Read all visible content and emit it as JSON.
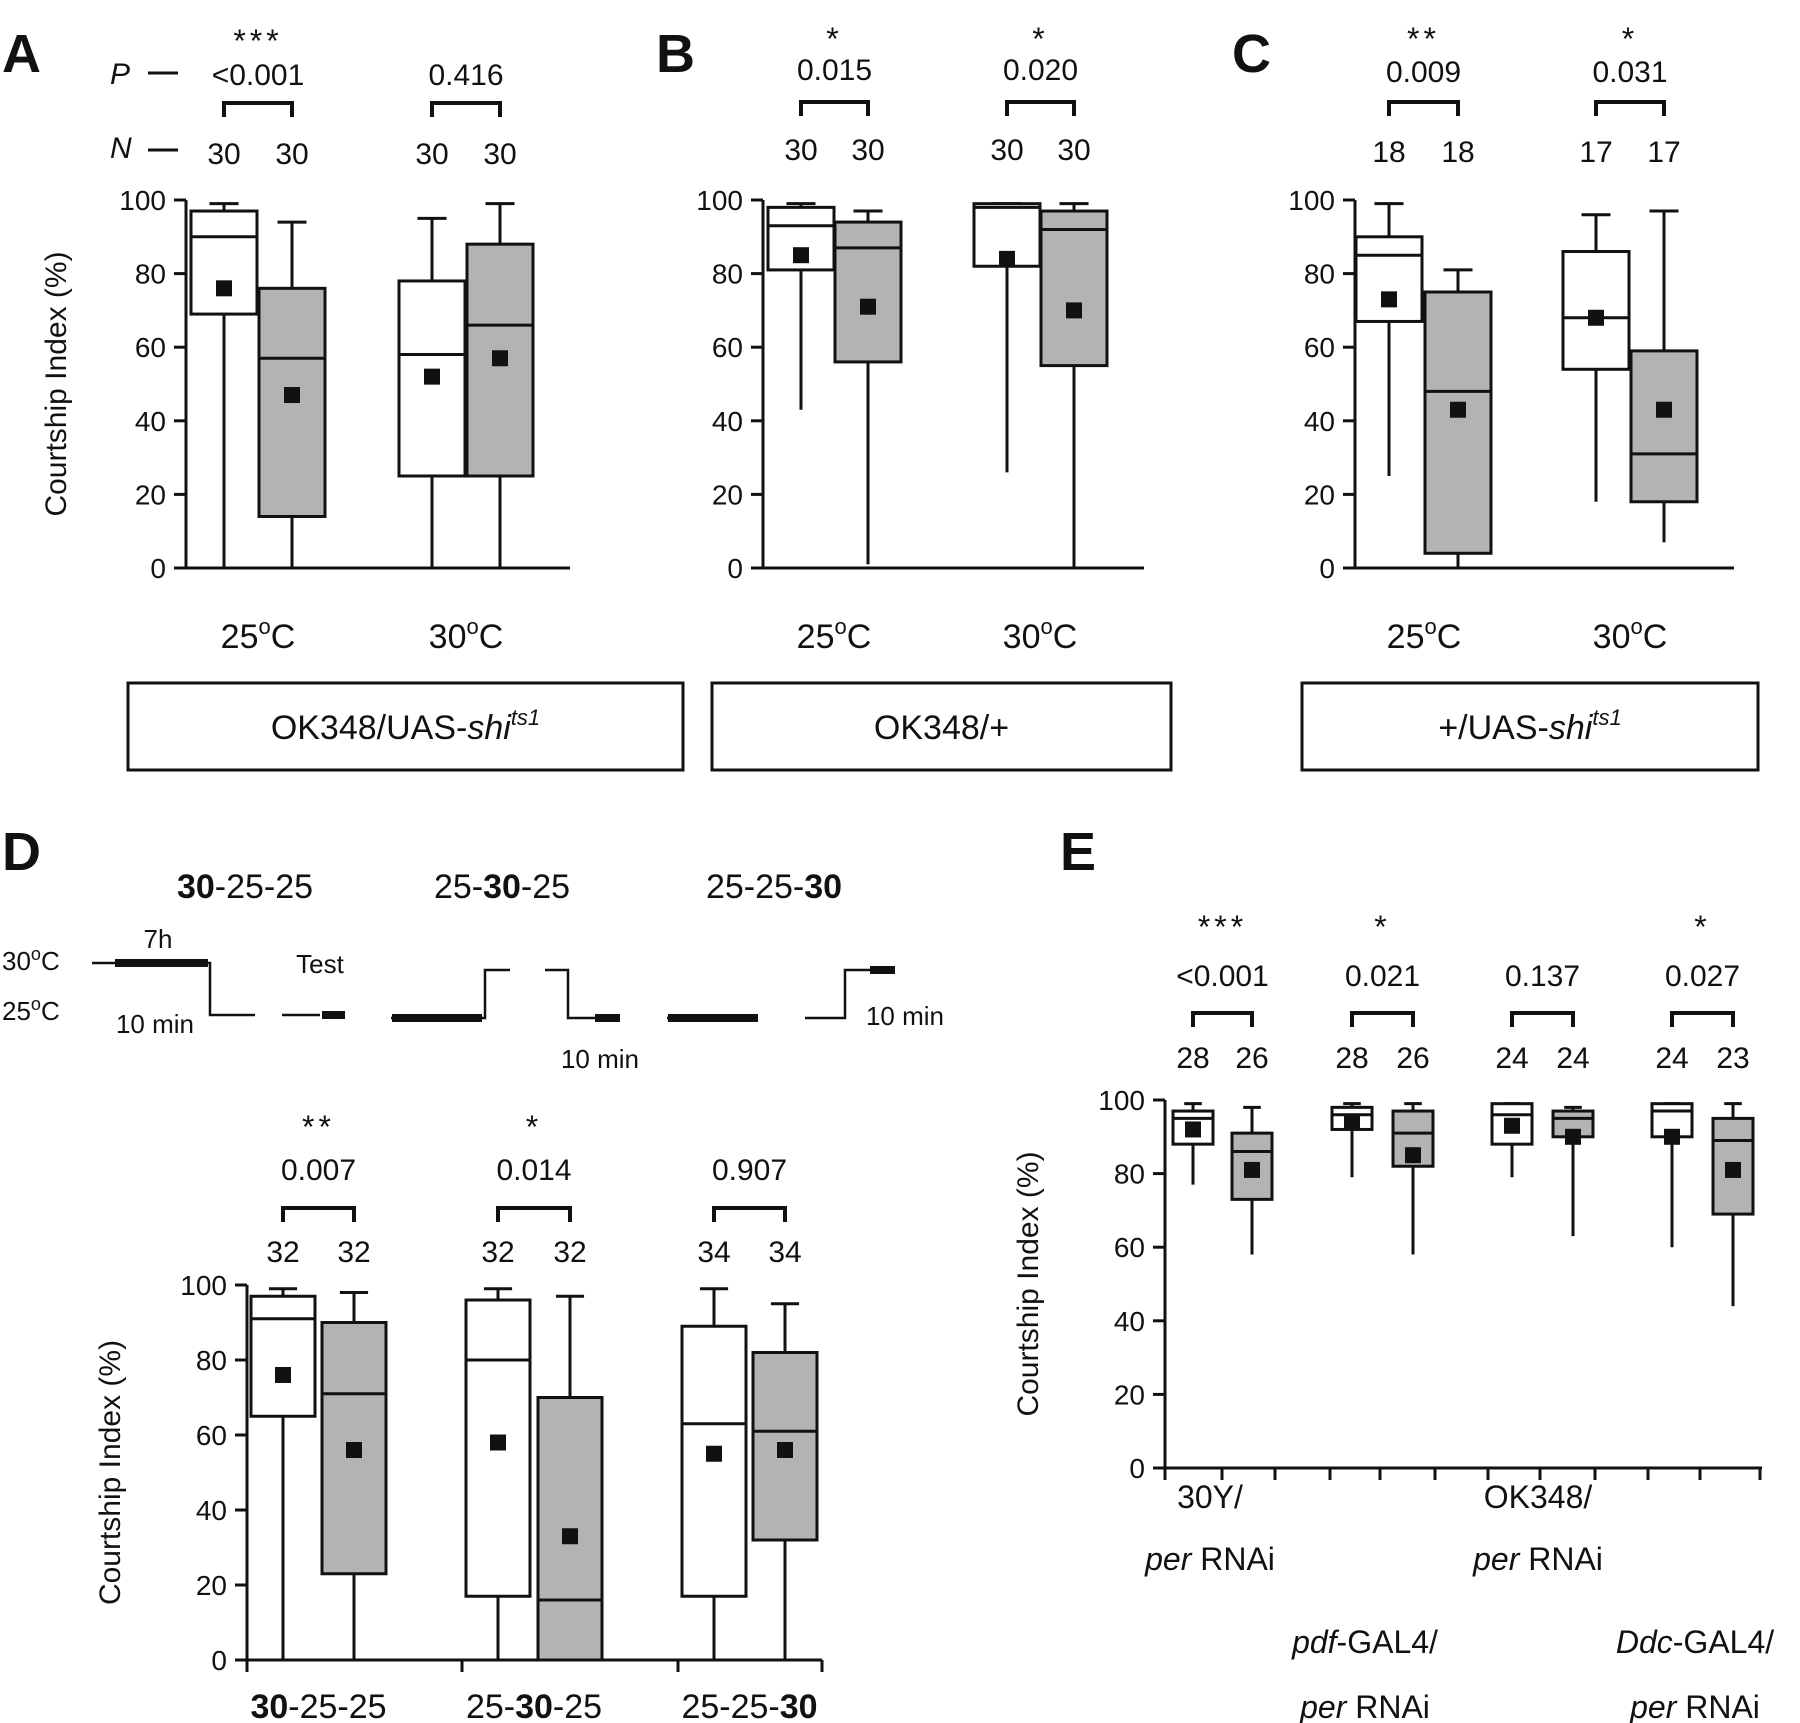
{
  "figure": {
    "row_labels": {
      "p": "P",
      "n": "N"
    },
    "y_axis_label": "Courtship Index (%)",
    "y_ticks": [
      "0",
      "20",
      "40",
      "60",
      "80",
      "100"
    ]
  },
  "top_panels": [
    {
      "letter": "A",
      "genotype_html": "OK348/UAS-<tspan font-style=\"italic\">shi</tspan><tspan font-style=\"italic\" font-size=\"22\" dy=\"-14\">ts1</tspan>",
      "genotype_text": "OK348/UAS-shits1",
      "show_pn_labels": true,
      "groups": [
        {
          "temp": "25",
          "stars": "***",
          "p": "<0.001",
          "n": [
            "30",
            "30"
          ]
        },
        {
          "temp": "30",
          "stars": "",
          "p": "0.416",
          "n": [
            "30",
            "30"
          ]
        }
      ]
    },
    {
      "letter": "B",
      "genotype_html": "OK348/+",
      "genotype_text": "OK348/+",
      "show_pn_labels": false,
      "groups": [
        {
          "temp": "25",
          "stars": "*",
          "p": "0.015",
          "n": [
            "30",
            "30"
          ]
        },
        {
          "temp": "30",
          "stars": "*",
          "p": "0.020",
          "n": [
            "30",
            "30"
          ]
        }
      ]
    },
    {
      "letter": "C",
      "genotype_html": "+/UAS-<tspan font-style=\"italic\">shi</tspan><tspan font-style=\"italic\" font-size=\"22\" dy=\"-14\">ts1</tspan>",
      "genotype_text": "+/UAS-shits1",
      "show_pn_labels": false,
      "groups": [
        {
          "temp": "25",
          "stars": "**",
          "p": "0.009",
          "n": [
            "18",
            "18"
          ]
        },
        {
          "temp": "30",
          "stars": "*",
          "p": "0.031",
          "n": [
            "17",
            "17"
          ]
        }
      ]
    }
  ],
  "panel_d": {
    "letter": "D",
    "schedules": [
      "30-25-25",
      "25-30-25",
      "25-25-30"
    ],
    "schedule_diagram": {
      "hot_label": "30°C",
      "cold_label": "25°C",
      "duration": "7h",
      "test": "Test",
      "ten_min": "10 min"
    },
    "groups": [
      {
        "stars": "**",
        "p": "0.007",
        "n": [
          "32",
          "32"
        ]
      },
      {
        "stars": "*",
        "p": "0.014",
        "n": [
          "32",
          "32"
        ]
      },
      {
        "stars": "",
        "p": "0.907",
        "n": [
          "34",
          "34"
        ]
      }
    ]
  },
  "panel_e": {
    "letter": "E",
    "categories": [
      {
        "line1": "30Y/",
        "line2_italic": "per",
        "line2_rest": " RNAi"
      },
      {
        "line1_italic": "pdf",
        "line1_rest": "-GAL4/",
        "line2_italic": "per",
        "line2_rest": " RNAi"
      },
      {
        "line1": "OK348/",
        "line2_italic": "per",
        "line2_rest": " RNAi"
      },
      {
        "line1_italic": "Ddc",
        "line1_rest": "-GAL4/",
        "line2_italic": "per",
        "line2_rest": " RNAi"
      }
    ],
    "groups": [
      {
        "stars": "***",
        "p": "<0.001",
        "n": [
          "28",
          "26"
        ]
      },
      {
        "stars": "*",
        "p": "0.021",
        "n": [
          "28",
          "26"
        ]
      },
      {
        "stars": "",
        "p": "0.137",
        "n": [
          "24",
          "24"
        ]
      },
      {
        "stars": "*",
        "p": "0.027",
        "n": [
          "24",
          "23"
        ]
      }
    ]
  },
  "chart_data": [
    {
      "panel": "A",
      "type": "box",
      "ylabel": "Courtship Index (%)",
      "ylim": [
        0,
        100
      ],
      "categories": [
        "25°C",
        "30°C"
      ],
      "group_label": "OK348/UAS-shits1",
      "fills": {
        "first": "#ffffff",
        "second": "#b3b3b3"
      },
      "boxes": [
        {
          "min": 0,
          "q1": 69,
          "median": 90,
          "q3": 97,
          "max": 99,
          "mean": 76,
          "fill": "white"
        },
        {
          "min": 0,
          "q1": 14,
          "median": 57,
          "q3": 76,
          "max": 94,
          "mean": 47,
          "fill": "gray"
        },
        {
          "min": 0,
          "q1": 25,
          "median": 58,
          "q3": 78,
          "max": 95,
          "mean": 52,
          "fill": "white"
        },
        {
          "min": 0,
          "q1": 25,
          "median": 66,
          "q3": 88,
          "max": 99,
          "mean": 57,
          "fill": "gray"
        }
      ]
    },
    {
      "panel": "B",
      "type": "box",
      "ylabel": "",
      "ylim": [
        0,
        100
      ],
      "categories": [
        "25°C",
        "30°C"
      ],
      "group_label": "OK348/+",
      "boxes": [
        {
          "min": 43,
          "q1": 81,
          "median": 93,
          "q3": 98,
          "max": 99,
          "mean": 85,
          "fill": "white"
        },
        {
          "min": 1,
          "q1": 56,
          "median": 87,
          "q3": 94,
          "max": 97,
          "mean": 71,
          "fill": "gray"
        },
        {
          "min": 26,
          "q1": 82,
          "median": 98,
          "q3": 99,
          "max": 99,
          "mean": 84,
          "fill": "white"
        },
        {
          "min": 0,
          "q1": 55,
          "median": 92,
          "q3": 97,
          "max": 99,
          "mean": 70,
          "fill": "gray"
        }
      ]
    },
    {
      "panel": "C",
      "type": "box",
      "ylabel": "",
      "ylim": [
        0,
        100
      ],
      "categories": [
        "25°C",
        "30°C"
      ],
      "group_label": "+/UAS-shits1",
      "boxes": [
        {
          "min": 25,
          "q1": 67,
          "median": 85,
          "q3": 90,
          "max": 99,
          "mean": 73,
          "fill": "white"
        },
        {
          "min": 0,
          "q1": 4,
          "median": 48,
          "q3": 75,
          "max": 81,
          "mean": 43,
          "fill": "gray"
        },
        {
          "min": 18,
          "q1": 54,
          "median": 68,
          "q3": 86,
          "max": 96,
          "mean": 68,
          "fill": "white"
        },
        {
          "min": 7,
          "q1": 18,
          "median": 31,
          "q3": 59,
          "max": 97,
          "mean": 43,
          "fill": "gray"
        }
      ]
    },
    {
      "panel": "D",
      "type": "box",
      "ylabel": "Courtship Index (%)",
      "ylim": [
        0,
        100
      ],
      "categories": [
        "30-25-25",
        "25-30-25",
        "25-25-30"
      ],
      "boxes": [
        {
          "min": 0,
          "q1": 65,
          "median": 91,
          "q3": 97,
          "max": 99,
          "mean": 76,
          "fill": "white"
        },
        {
          "min": 0,
          "q1": 23,
          "median": 71,
          "q3": 90,
          "max": 98,
          "mean": 56,
          "fill": "gray"
        },
        {
          "min": 0,
          "q1": 17,
          "median": 80,
          "q3": 96,
          "max": 99,
          "mean": 58,
          "fill": "white"
        },
        {
          "min": 0,
          "q1": 0,
          "median": 16,
          "q3": 70,
          "max": 97,
          "mean": 33,
          "fill": "gray"
        },
        {
          "min": 0,
          "q1": 17,
          "median": 63,
          "q3": 89,
          "max": 99,
          "mean": 55,
          "fill": "white"
        },
        {
          "min": 0,
          "q1": 32,
          "median": 61,
          "q3": 82,
          "max": 95,
          "mean": 56,
          "fill": "gray"
        }
      ]
    },
    {
      "panel": "E",
      "type": "box",
      "ylabel": "Courtship Index (%)",
      "ylim": [
        0,
        100
      ],
      "categories": [
        "30Y/per RNAi",
        "pdf-GAL4/per RNAi",
        "OK348/per RNAi",
        "Ddc-GAL4/per RNAi"
      ],
      "boxes": [
        {
          "min": 77,
          "q1": 88,
          "median": 95,
          "q3": 97,
          "max": 99,
          "mean": 92,
          "fill": "white"
        },
        {
          "min": 58,
          "q1": 73,
          "median": 86,
          "q3": 91,
          "max": 98,
          "mean": 81,
          "fill": "gray"
        },
        {
          "min": 79,
          "q1": 92,
          "median": 96,
          "q3": 98,
          "max": 99,
          "mean": 94,
          "fill": "white"
        },
        {
          "min": 58,
          "q1": 82,
          "median": 91,
          "q3": 97,
          "max": 99,
          "mean": 85,
          "fill": "gray"
        },
        {
          "min": 79,
          "q1": 88,
          "median": 96,
          "q3": 99,
          "max": 99,
          "mean": 93,
          "fill": "white"
        },
        {
          "min": 63,
          "q1": 90,
          "median": 95,
          "q3": 97,
          "max": 98,
          "mean": 90,
          "fill": "gray"
        },
        {
          "min": 60,
          "q1": 90,
          "median": 97,
          "q3": 99,
          "max": 99,
          "mean": 90,
          "fill": "white"
        },
        {
          "min": 44,
          "q1": 69,
          "median": 89,
          "q3": 95,
          "max": 99,
          "mean": 81,
          "fill": "gray"
        }
      ]
    }
  ]
}
